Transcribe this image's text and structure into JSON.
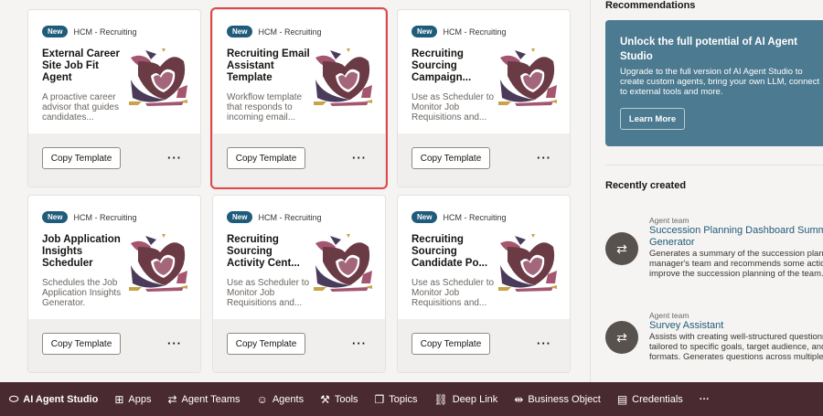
{
  "cards": [
    {
      "badge": "New",
      "category": "HCM - Recruiting",
      "title": "External Career Site Job Fit Agent",
      "description": "A proactive career advisor that guides candidates...",
      "copy_label": "Copy Template",
      "more_label": "···",
      "selected": false
    },
    {
      "badge": "New",
      "category": "HCM - Recruiting",
      "title": "Recruiting Email Assistant Template",
      "description": "Workflow template that responds to incoming email...",
      "copy_label": "Copy Template",
      "more_label": "···",
      "selected": true
    },
    {
      "badge": "New",
      "category": "HCM - Recruiting",
      "title": "Recruiting Sourcing Campaign...",
      "description": "Use as Scheduler to Monitor Job Requisitions and...",
      "copy_label": "Copy Template",
      "more_label": "···",
      "selected": false
    },
    {
      "badge": "New",
      "category": "HCM - Recruiting",
      "title": "Job Application Insights Scheduler",
      "description": "Schedules the Job Application Insights Generator.",
      "copy_label": "Copy Template",
      "more_label": "···",
      "selected": false
    },
    {
      "badge": "New",
      "category": "HCM - Recruiting",
      "title": "Recruiting Sourcing Activity Cent...",
      "description": "Use as Scheduler to Monitor Job Requisitions and...",
      "copy_label": "Copy Template",
      "more_label": "···",
      "selected": false
    },
    {
      "badge": "New",
      "category": "HCM - Recruiting",
      "title": "Recruiting Sourcing Candidate Po...",
      "description": "Use as Scheduler to Monitor Job Requisitions and...",
      "copy_label": "Copy Template",
      "more_label": "···",
      "selected": false
    }
  ],
  "sidebar": {
    "recommendations_heading": "Recommendations",
    "promo": {
      "title": "Unlock the full potential of AI Agent Studio",
      "description": "Upgrade to the full version of AI Agent Studio to create custom agents, bring your own LLM, connect to external tools and more.",
      "button": "Learn More"
    },
    "recent_heading": "Recently created",
    "recent": [
      {
        "type": "Agent team",
        "name": "Succession Planning Dashboard Summary Generator",
        "description": "Generates a summary of the succession plan data for a manager's team and recommends some actions to improve the succession planning of the team."
      },
      {
        "type": "Agent team",
        "name": "Survey Assistant",
        "description": "Assists with creating well-structured questionnaires tailored to specific goals, target audience, and question formats. Generates questions across multiple"
      }
    ]
  },
  "nav": [
    {
      "label": "AI Agent Studio",
      "icon": "oval-icon"
    },
    {
      "label": "Apps",
      "icon": "apps-grid-icon"
    },
    {
      "label": "Agent Teams",
      "icon": "agent-teams-icon"
    },
    {
      "label": "Agents",
      "icon": "agent-icon"
    },
    {
      "label": "Tools",
      "icon": "tools-icon"
    },
    {
      "label": "Topics",
      "icon": "topics-icon"
    },
    {
      "label": "Deep Link",
      "icon": "link-icon"
    },
    {
      "label": "Business Object",
      "icon": "business-object-icon"
    },
    {
      "label": "Credentials",
      "icon": "credentials-icon"
    }
  ],
  "nav_more": "···",
  "colors": {
    "nav_bg": "#4a2a31",
    "badge": "#1f5b7a",
    "promo_bg": "#4c7a90",
    "link": "#1f5b7a",
    "selected_outline": "#e0484a"
  }
}
